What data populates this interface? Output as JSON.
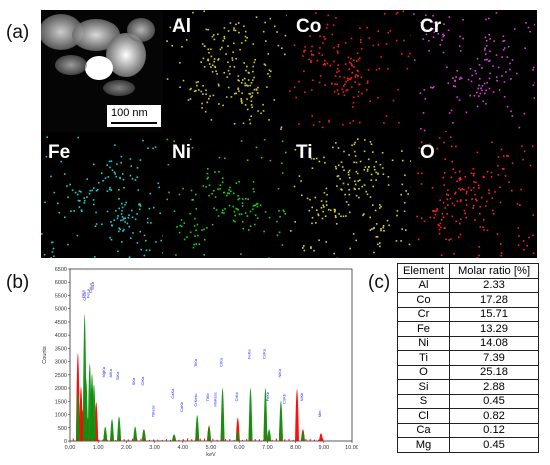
{
  "labels": {
    "a": "(a)",
    "b": "(b)",
    "c": "(c)"
  },
  "scalebar": "100 nm",
  "maps": [
    {
      "element": "",
      "color": "#e6e6e6"
    },
    {
      "element": "Al",
      "color": "#d4cc2a"
    },
    {
      "element": "Co",
      "color": "#ff1a1a"
    },
    {
      "element": "Cr",
      "color": "#e23ce2"
    },
    {
      "element": "Fe",
      "color": "#19d2d2"
    },
    {
      "element": "Ni",
      "color": "#18d418"
    },
    {
      "element": "Ti",
      "color": "#d6d22a"
    },
    {
      "element": "O",
      "color": "#ff2222"
    }
  ],
  "table": {
    "headers": [
      "Element",
      "Molar ratio [%]"
    ],
    "rows": [
      [
        "Al",
        "2.33"
      ],
      [
        "Co",
        "17.28"
      ],
      [
        "Cr",
        "15.71"
      ],
      [
        "Fe",
        "13.29"
      ],
      [
        "Ni",
        "14.08"
      ],
      [
        "Ti",
        "7.39"
      ],
      [
        "O",
        "25.18"
      ],
      [
        "Si",
        "2.88"
      ],
      [
        "S",
        "0.45"
      ],
      [
        "Cl",
        "0.82"
      ],
      [
        "Ca",
        "0.12"
      ],
      [
        "Mg",
        "0.45"
      ]
    ]
  },
  "chart_data": {
    "type": "area",
    "xlabel": "keV",
    "ylabel": "Counts",
    "xlim": [
      0,
      10
    ],
    "ylim": [
      0,
      6500
    ],
    "xticks": [
      "0.00",
      "1.00",
      "2.00",
      "3.00",
      "4.00",
      "5.00",
      "6.00",
      "7.00",
      "8.00",
      "9.00",
      "10.00"
    ],
    "yticks": [
      "0",
      "500",
      "1000",
      "1500",
      "2000",
      "2500",
      "3000",
      "3500",
      "4000",
      "4500",
      "5000",
      "5500",
      "6000",
      "6500"
    ],
    "series": [
      {
        "color": "#ff0000",
        "peaks": [
          [
            0.28,
            3400
          ],
          [
            0.39,
            2100
          ],
          [
            0.45,
            1200
          ],
          [
            0.53,
            2600
          ],
          [
            0.64,
            900
          ],
          [
            0.78,
            2200
          ],
          [
            0.93,
            1500
          ],
          [
            1.25,
            350
          ],
          [
            1.49,
            350
          ],
          [
            1.74,
            500
          ],
          [
            2.31,
            350
          ],
          [
            2.62,
            450
          ],
          [
            3.69,
            250
          ],
          [
            4.51,
            700
          ],
          [
            4.93,
            600
          ],
          [
            5.41,
            1100
          ],
          [
            5.95,
            900
          ],
          [
            6.4,
            1200
          ],
          [
            6.93,
            1250
          ],
          [
            7.06,
            350
          ],
          [
            7.48,
            1150
          ],
          [
            8.05,
            2000
          ],
          [
            8.26,
            450
          ],
          [
            8.9,
            300
          ]
        ]
      },
      {
        "color": "#109010",
        "peaks": [
          [
            0.28,
            1900
          ],
          [
            0.52,
            4900
          ],
          [
            0.57,
            2400
          ],
          [
            0.7,
            3000
          ],
          [
            0.78,
            2600
          ],
          [
            0.85,
            2200
          ],
          [
            1.25,
            550
          ],
          [
            1.49,
            850
          ],
          [
            1.74,
            950
          ],
          [
            2.31,
            550
          ],
          [
            2.62,
            450
          ],
          [
            3.69,
            250
          ],
          [
            4.51,
            1000
          ],
          [
            4.93,
            550
          ],
          [
            5.41,
            2050
          ],
          [
            5.95,
            400
          ],
          [
            6.4,
            2050
          ],
          [
            6.93,
            2050
          ],
          [
            7.06,
            450
          ],
          [
            7.48,
            1550
          ],
          [
            8.26,
            350
          ]
        ]
      }
    ],
    "annotations": [
      "OKa",
      "NiLa",
      "CoLa",
      "CrLa",
      "FeLa",
      "MgKa",
      "AlKa",
      "SiKa",
      "SKa",
      "ClKa",
      "CaKa",
      "CaKb",
      "TiKa",
      "TiKb",
      "TiKesc",
      "CrKesc",
      "CrKa",
      "CrKb",
      "MnKesc",
      "FeKa",
      "FeKb",
      "CoKa",
      "CoKb",
      "NiKa",
      "NiKb",
      "Mm"
    ]
  }
}
